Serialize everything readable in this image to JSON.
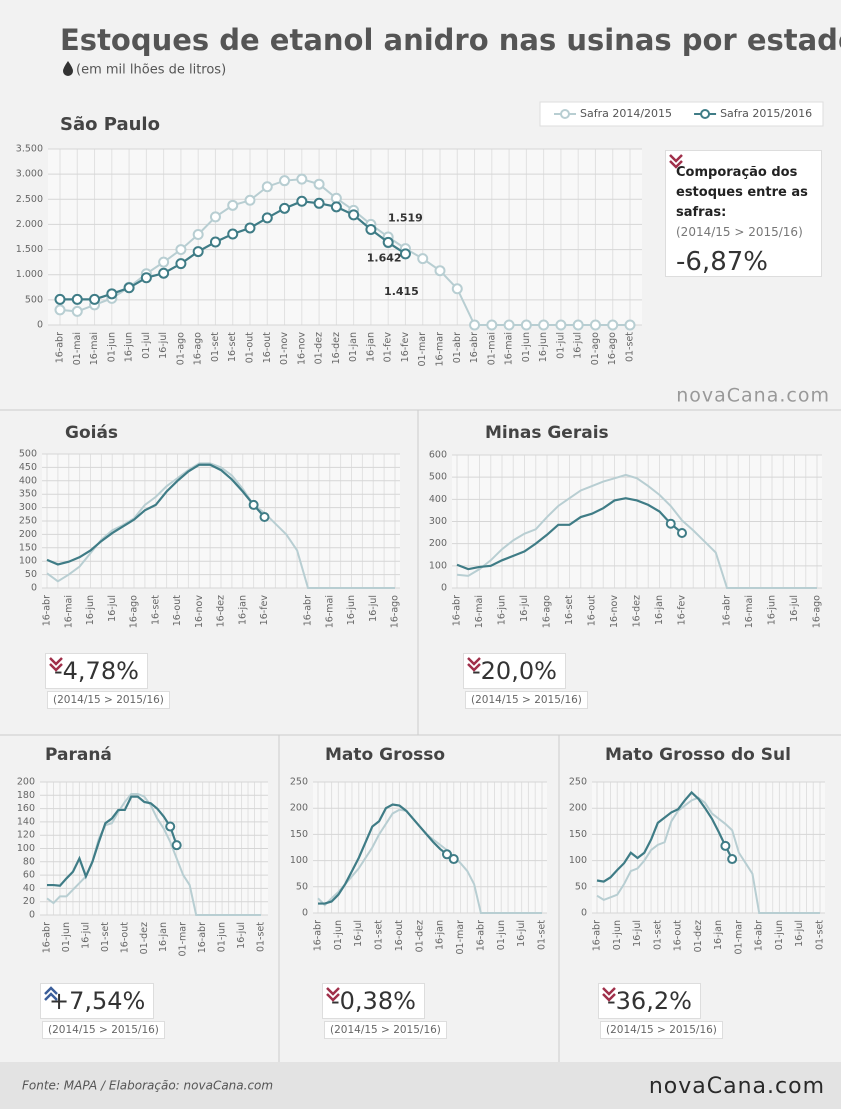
{
  "title": "Estoques de etanol anidro nas usinas por estado",
  "subtitle": "(em mil lhões de litros)",
  "source": "Fonte: MAPA  / Elaboração: novaCana.com",
  "brand": "novaCana.com",
  "chart_data": [
    {
      "type": "line",
      "title": "São Paulo",
      "legend": "top-right",
      "markers": "all",
      "categories": [
        "16-abr",
        "01-mai",
        "16-mai",
        "01-jun",
        "16-jun",
        "01-jul",
        "16-jul",
        "01-ago",
        "16-ago",
        "01-set",
        "16-set",
        "01-out",
        "16-out",
        "01-nov",
        "16-nov",
        "01-dez",
        "16-dez",
        "01-jan",
        "16-jan",
        "01-fev",
        "16-fev",
        "01-mar",
        "16-mar",
        "01-abr",
        "16-abr",
        "01-mai",
        "16-mai",
        "01-jun",
        "16-jun",
        "01-jul",
        "16-jul",
        "01-ago",
        "16-ago",
        "01-set"
      ],
      "ylim": [
        0,
        3500
      ],
      "yticks": [
        0,
        500,
        {
          "value": 1000,
          "label": "1.000"
        },
        {
          "value": 1500,
          "label": "1.500"
        },
        {
          "value": 2000,
          "label": "2.000"
        },
        {
          "value": 2500,
          "label": "2.500"
        },
        {
          "value": 3000,
          "label": "3.000"
        },
        {
          "value": 3500,
          "label": "3.500"
        }
      ],
      "series": [
        {
          "name": "Safra 2014/2015",
          "color": "#b8ced2",
          "values": [
            300,
            270,
            400,
            530,
            750,
            1020,
            1250,
            1500,
            1800,
            2150,
            2380,
            2480,
            2750,
            2870,
            2900,
            2800,
            2520,
            2280,
            2000,
            1750,
            1519,
            1320,
            1080,
            720,
            0,
            0,
            0,
            0,
            0,
            0,
            0,
            0,
            0,
            0
          ],
          "value_labels": [
            null,
            null,
            null,
            null,
            null,
            null,
            null,
            null,
            null,
            null,
            null,
            null,
            null,
            null,
            null,
            null,
            null,
            null,
            null,
            null,
            "1.519",
            null,
            null,
            null,
            null,
            null,
            null,
            null,
            null,
            null,
            null,
            null,
            null,
            null
          ]
        },
        {
          "name": "Safra 2015/2016",
          "color": "#3f7c86",
          "values": [
            510,
            510,
            510,
            620,
            740,
            940,
            1030,
            1220,
            1460,
            1650,
            1810,
            1930,
            2130,
            2320,
            2460,
            2420,
            2350,
            2190,
            1900,
            1642,
            1415,
            null,
            null,
            null,
            null,
            null,
            null,
            null,
            null,
            null,
            null,
            null,
            null,
            null
          ],
          "value_labels": [
            null,
            null,
            null,
            null,
            null,
            null,
            null,
            null,
            null,
            null,
            null,
            null,
            null,
            null,
            null,
            null,
            null,
            null,
            null,
            "1.642",
            "1.415",
            null,
            null,
            null,
            null,
            null,
            null,
            null,
            null,
            null,
            null,
            null,
            null,
            null
          ]
        }
      ],
      "comparison": {
        "title": "Comporação dos estoques entre as safras:",
        "period": "(2014/15 > 2015/16)",
        "change": {
          "value": -6.87,
          "label": "-6,87%"
        }
      }
    },
    {
      "type": "line",
      "title": "Goiás",
      "markers": "end",
      "categories": [
        "16-abr",
        null,
        "16-mai",
        null,
        "16-jun",
        null,
        "16-jul",
        null,
        "16-ago",
        null,
        "16-set",
        null,
        "16-out",
        null,
        "16-nov",
        null,
        "16-dez",
        null,
        "16-jan",
        null,
        "16-fev",
        null,
        null,
        null,
        "16-abr",
        null,
        "16-mai",
        null,
        "16-jun",
        null,
        "16-jul",
        null,
        "16-ago"
      ],
      "ylim": [
        0,
        500
      ],
      "yticks": [
        0,
        50,
        100,
        150,
        200,
        250,
        300,
        350,
        400,
        450,
        500
      ],
      "series": [
        {
          "color": "#b8ced2",
          "values": [
            55,
            25,
            50,
            80,
            130,
            180,
            215,
            235,
            260,
            310,
            340,
            380,
            410,
            440,
            465,
            465,
            450,
            420,
            370,
            310,
            280,
            240,
            200,
            140,
            0,
            0,
            0,
            0,
            0,
            0,
            0,
            0,
            0
          ]
        },
        {
          "color": "#3f7c86",
          "values": [
            105,
            88,
            98,
            115,
            140,
            175,
            205,
            230,
            255,
            290,
            310,
            360,
            400,
            435,
            460,
            460,
            440,
            405,
            360,
            310,
            265,
            null,
            null,
            null,
            null,
            null,
            null,
            null,
            null,
            null,
            null,
            null,
            null
          ]
        }
      ],
      "comparison": {
        "period": "(2014/15 > 2015/16)",
        "change": {
          "value": -4.78,
          "label": "-4,78%"
        }
      }
    },
    {
      "type": "line",
      "title": "Minas Gerais",
      "markers": "end",
      "categories": [
        "16-abr",
        null,
        "16-mai",
        null,
        "16-jun",
        null,
        "16-jul",
        null,
        "16-ago",
        null,
        "16-set",
        null,
        "16-out",
        null,
        "16-nov",
        null,
        "16-dez",
        null,
        "16-jan",
        null,
        "16-fev",
        null,
        null,
        null,
        "16-abr",
        null,
        "16-mai",
        null,
        "16-jun",
        null,
        "16-jul",
        null,
        "16-ago"
      ],
      "ylim": [
        0,
        600
      ],
      "yticks": [
        0,
        100,
        200,
        300,
        400,
        500,
        600
      ],
      "series": [
        {
          "color": "#b8ced2",
          "values": [
            60,
            55,
            85,
            125,
            175,
            215,
            245,
            265,
            320,
            370,
            405,
            440,
            460,
            480,
            495,
            510,
            495,
            460,
            420,
            370,
            305,
            260,
            210,
            160,
            0,
            0,
            0,
            0,
            0,
            0,
            0,
            0,
            0
          ]
        },
        {
          "color": "#3f7c86",
          "values": [
            105,
            85,
            95,
            100,
            125,
            145,
            165,
            200,
            240,
            285,
            285,
            320,
            335,
            360,
            395,
            405,
            395,
            375,
            345,
            290,
            248,
            null,
            null,
            null,
            null,
            null,
            null,
            null,
            null,
            null,
            null,
            null,
            null
          ]
        }
      ],
      "comparison": {
        "period": "(2014/15 > 2015/16)",
        "change": {
          "value": -20,
          "label": "-20,0%"
        }
      }
    },
    {
      "type": "line",
      "title": "Paraná",
      "markers": "end",
      "categories": [
        "16-abr",
        null,
        null,
        "01-jun",
        null,
        null,
        "16-jul",
        null,
        null,
        "01-set",
        null,
        null,
        "16-out",
        null,
        null,
        "01-dez",
        null,
        null,
        "16-jan",
        null,
        null,
        "01-mar",
        null,
        null,
        "16-abr",
        null,
        null,
        "01-jun",
        null,
        null,
        "16-jul",
        null,
        null,
        "01-set"
      ],
      "ylim": [
        0,
        200
      ],
      "yticks": [
        0,
        20,
        40,
        60,
        80,
        100,
        120,
        140,
        160,
        180,
        200
      ],
      "series": [
        {
          "color": "#b8ced2",
          "values": [
            25,
            18,
            28,
            28,
            38,
            48,
            58,
            80,
            115,
            135,
            138,
            155,
            170,
            182,
            182,
            178,
            165,
            145,
            130,
            110,
            85,
            60,
            45,
            0,
            0,
            0,
            0,
            0,
            0,
            0,
            0,
            0,
            0,
            0
          ]
        },
        {
          "color": "#3f7c86",
          "values": [
            45,
            45,
            44,
            55,
            65,
            85,
            58,
            80,
            110,
            138,
            145,
            158,
            158,
            178,
            178,
            170,
            168,
            160,
            148,
            133,
            105,
            null,
            null,
            null,
            null,
            null,
            null,
            null,
            null,
            null,
            null,
            null,
            null,
            null
          ]
        }
      ],
      "comparison": {
        "period": "(2014/15 > 2015/16)",
        "change": {
          "value": 7.54,
          "label": "+7,54%"
        }
      }
    },
    {
      "type": "line",
      "title": "Mato Grosso",
      "markers": "end",
      "categories": [
        "16-abr",
        null,
        null,
        "01-jun",
        null,
        null,
        "16-jul",
        null,
        null,
        "01-set",
        null,
        null,
        "16-out",
        null,
        null,
        "01-dez",
        null,
        null,
        "16-jan",
        null,
        null,
        "01-mar",
        null,
        null,
        "16-abr",
        null,
        null,
        "01-jun",
        null,
        null,
        "16-jul",
        null,
        null,
        "01-set"
      ],
      "ylim": [
        0,
        250
      ],
      "yticks": [
        0,
        50,
        100,
        150,
        200,
        250
      ],
      "series": [
        {
          "color": "#b8ced2",
          "values": [
            28,
            15,
            28,
            40,
            55,
            70,
            85,
            105,
            125,
            150,
            170,
            190,
            197,
            195,
            180,
            165,
            150,
            140,
            130,
            120,
            108,
            95,
            80,
            55,
            0,
            0,
            0,
            0,
            0,
            0,
            0,
            0,
            0,
            0
          ]
        },
        {
          "color": "#3f7c86",
          "values": [
            18,
            18,
            22,
            35,
            55,
            80,
            105,
            135,
            165,
            175,
            200,
            207,
            205,
            195,
            180,
            165,
            150,
            135,
            122,
            112,
            103,
            null,
            null,
            null,
            null,
            null,
            null,
            null,
            null,
            null,
            null,
            null,
            null,
            null
          ]
        }
      ],
      "comparison": {
        "period": "(2014/15 > 2015/16)",
        "change": {
          "value": -0.38,
          "label": "-0,38%"
        }
      }
    },
    {
      "type": "line",
      "title": "Mato Grosso do Sul",
      "markers": "end",
      "categories": [
        "16-abr",
        null,
        null,
        "01-jun",
        null,
        null,
        "16-jul",
        null,
        null,
        "01-set",
        null,
        null,
        "16-out",
        null,
        null,
        "01-dez",
        null,
        null,
        "16-jan",
        null,
        null,
        "01-mar",
        null,
        null,
        "16-abr",
        null,
        null,
        "01-jun",
        null,
        null,
        "16-jul",
        null,
        null,
        "01-set"
      ],
      "ylim": [
        0,
        250
      ],
      "yticks": [
        0,
        50,
        100,
        150,
        200,
        250
      ],
      "series": [
        {
          "color": "#b8ced2",
          "values": [
            33,
            25,
            30,
            35,
            55,
            80,
            85,
            100,
            120,
            130,
            135,
            175,
            195,
            205,
            215,
            220,
            210,
            190,
            180,
            170,
            158,
            115,
            95,
            75,
            0,
            0,
            0,
            0,
            0,
            0,
            0,
            0,
            0,
            0
          ]
        },
        {
          "color": "#3f7c86",
          "values": [
            62,
            60,
            68,
            82,
            95,
            115,
            105,
            115,
            140,
            172,
            182,
            192,
            198,
            215,
            230,
            218,
            200,
            180,
            155,
            128,
            103,
            null,
            null,
            null,
            null,
            null,
            null,
            null,
            null,
            null,
            null,
            null,
            null,
            null
          ]
        }
      ],
      "comparison": {
        "period": "(2014/15 > 2015/16)",
        "change": {
          "value": -36.2,
          "label": "-36,2%"
        }
      }
    }
  ]
}
